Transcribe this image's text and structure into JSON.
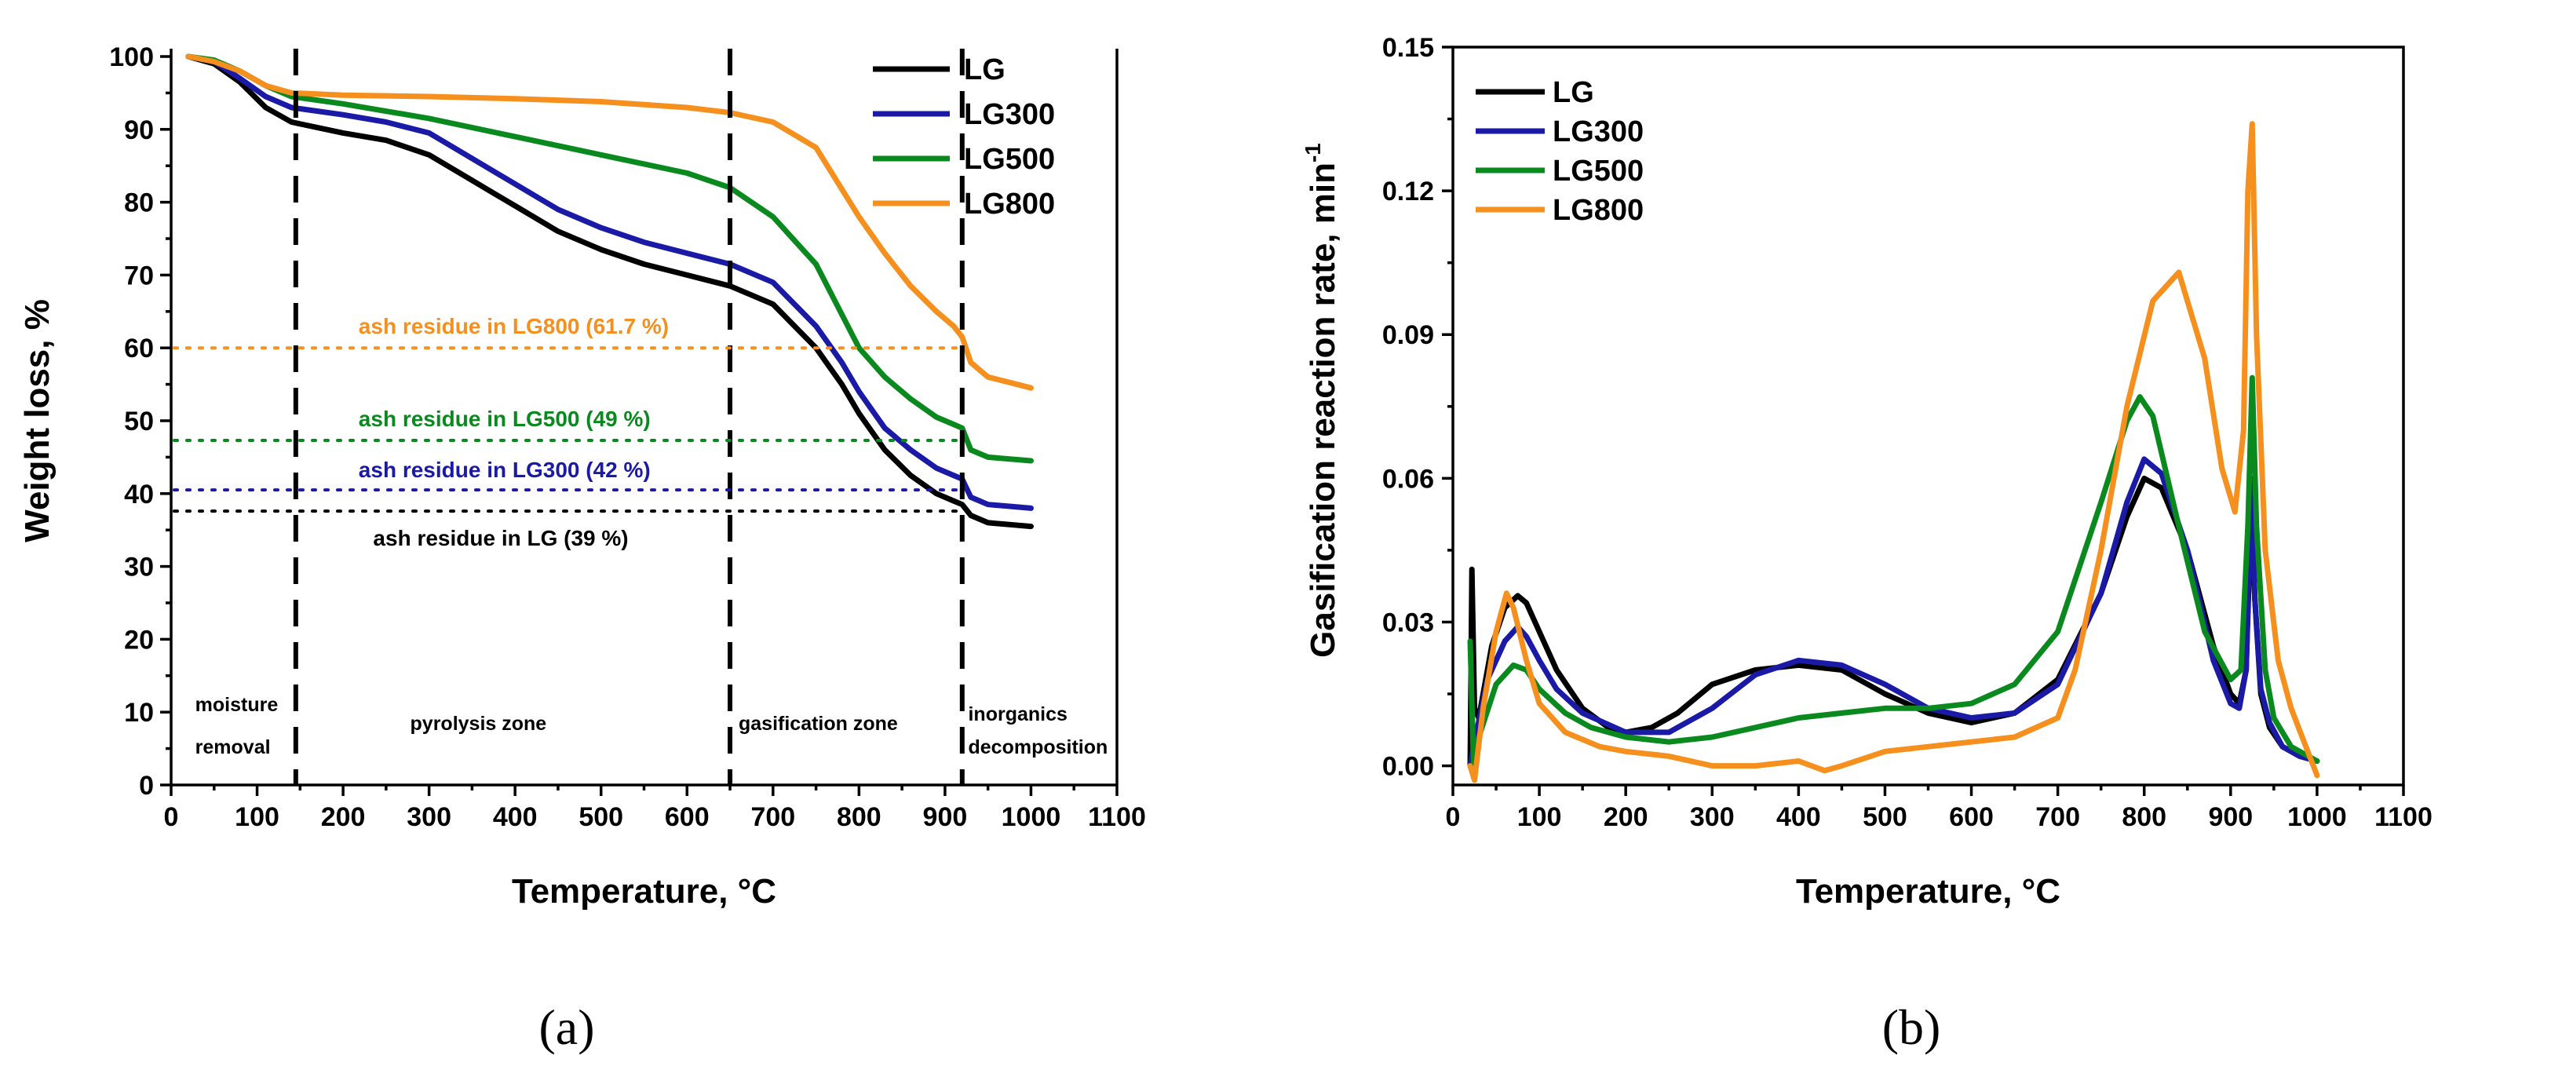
{
  "chart_data": [
    {
      "panel": "(a)",
      "type": "line",
      "title": "",
      "xlabel": "Temperature, °C",
      "ylabel": "Weight loss, %",
      "xlim": [
        0,
        1100
      ],
      "ylim": [
        0,
        100
      ],
      "xticks": [
        0,
        100,
        200,
        300,
        400,
        500,
        600,
        700,
        800,
        900,
        1000,
        1100
      ],
      "yticks": [
        0,
        10,
        20,
        30,
        40,
        50,
        60,
        70,
        80,
        90,
        100
      ],
      "legend_position": "top-right",
      "series": [
        {
          "name": "LG",
          "color": "#000000",
          "x": [
            20,
            50,
            80,
            110,
            140,
            200,
            250,
            300,
            350,
            400,
            450,
            500,
            550,
            600,
            650,
            700,
            750,
            780,
            800,
            830,
            860,
            890,
            910,
            920,
            930,
            950,
            1000
          ],
          "y": [
            100,
            99,
            96.5,
            93,
            91,
            89.5,
            88.5,
            86.5,
            83,
            79.5,
            76,
            73.5,
            71.5,
            70,
            68.5,
            66,
            60,
            55,
            51,
            46,
            42.5,
            40,
            39,
            38.5,
            37,
            36,
            35.5
          ]
        },
        {
          "name": "LG300",
          "color": "#1a1aa6",
          "x": [
            20,
            50,
            80,
            110,
            140,
            200,
            250,
            300,
            350,
            400,
            450,
            500,
            550,
            600,
            650,
            700,
            750,
            780,
            800,
            830,
            860,
            890,
            910,
            920,
            930,
            950,
            1000
          ],
          "y": [
            100,
            99.3,
            97,
            94.5,
            93,
            92,
            91,
            89.5,
            86,
            82.5,
            79,
            76.5,
            74.5,
            73,
            71.5,
            69,
            63,
            58,
            54,
            49,
            46,
            43.5,
            42.5,
            42,
            39.5,
            38.5,
            38
          ]
        },
        {
          "name": "LG500",
          "color": "#0a8a1e",
          "x": [
            20,
            50,
            80,
            110,
            140,
            200,
            300,
            400,
            500,
            600,
            650,
            700,
            750,
            800,
            830,
            860,
            890,
            910,
            920,
            930,
            950,
            1000
          ],
          "y": [
            100,
            99.5,
            98,
            96,
            94.5,
            93.5,
            91.5,
            89,
            86.5,
            84,
            82,
            78,
            71.5,
            60,
            56,
            53,
            50.5,
            49.5,
            49,
            46,
            45,
            44.5
          ]
        },
        {
          "name": "LG800",
          "color": "#f5901e",
          "x": [
            20,
            50,
            80,
            110,
            140,
            200,
            300,
            400,
            500,
            600,
            650,
            700,
            750,
            800,
            830,
            860,
            890,
            910,
            920,
            930,
            950,
            1000
          ],
          "y": [
            100,
            99.3,
            98,
            96,
            95,
            94.7,
            94.5,
            94.2,
            93.8,
            93,
            92.3,
            91,
            87.5,
            78,
            73,
            68.5,
            65,
            63,
            61.5,
            58,
            56,
            54.5
          ]
        }
      ],
      "reference_lines": [
        {
          "label": "ash residue in LG800 (61.7 %)",
          "y": 60,
          "color": "#f5901e"
        },
        {
          "label": "ash residue in LG500 (49 %)",
          "y": 47.3,
          "color": "#0a8a1e"
        },
        {
          "label": "ash residue in LG300 (42 %)",
          "y": 40.5,
          "color": "#1a1aa6"
        },
        {
          "label": "ash residue in LG (39 %)",
          "y": 37.6,
          "color": "#000000"
        }
      ],
      "zone_lines": [
        145,
        650,
        920
      ],
      "zones": [
        {
          "line1": "moisture",
          "line2": "removal"
        },
        {
          "line1": "pyrolysis zone",
          "line2": ""
        },
        {
          "line1": "gasification zone",
          "line2": ""
        },
        {
          "line1": "inorganics",
          "line2": "decomposition"
        }
      ]
    },
    {
      "panel": "(b)",
      "type": "line",
      "title": "",
      "xlabel": "Temperature, °C",
      "ylabel": "Gasification reaction rate, min",
      "ylabel_sup": "-1",
      "xlim": [
        0,
        1100
      ],
      "ylim": [
        -0.004,
        0.15
      ],
      "xticks": [
        0,
        100,
        200,
        300,
        400,
        500,
        600,
        700,
        800,
        900,
        1000,
        1100
      ],
      "yticks": [
        "0.00",
        "0.03",
        "0.06",
        "0.09",
        "0.12",
        "0.15"
      ],
      "legend_position": "top-left",
      "series": [
        {
          "name": "LG",
          "color": "#000000",
          "x": [
            20,
            22,
            25,
            30,
            45,
            60,
            75,
            85,
            100,
            120,
            150,
            180,
            200,
            230,
            260,
            300,
            350,
            400,
            450,
            500,
            550,
            600,
            650,
            700,
            750,
            780,
            800,
            820,
            850,
            880,
            900,
            910,
            918,
            924,
            928,
            935,
            945,
            960,
            980,
            1000
          ],
          "y": [
            0,
            0.041,
            0.012,
            0.01,
            0.025,
            0.033,
            0.0355,
            0.034,
            0.028,
            0.02,
            0.012,
            0.008,
            0.007,
            0.008,
            0.011,
            0.017,
            0.02,
            0.021,
            0.02,
            0.015,
            0.011,
            0.009,
            0.011,
            0.018,
            0.036,
            0.052,
            0.06,
            0.058,
            0.045,
            0.025,
            0.015,
            0.013,
            0.02,
            0.055,
            0.035,
            0.015,
            0.008,
            0.004,
            0.002,
            0.001
          ]
        },
        {
          "name": "LG300",
          "color": "#1a1aa6",
          "x": [
            20,
            25,
            40,
            60,
            75,
            85,
            100,
            120,
            150,
            200,
            250,
            300,
            350,
            400,
            450,
            500,
            550,
            600,
            650,
            700,
            750,
            780,
            800,
            820,
            850,
            880,
            900,
            910,
            918,
            924,
            928,
            935,
            945,
            960,
            980,
            1000
          ],
          "y": [
            0,
            0.005,
            0.018,
            0.026,
            0.029,
            0.027,
            0.022,
            0.016,
            0.011,
            0.007,
            0.007,
            0.012,
            0.019,
            0.022,
            0.021,
            0.017,
            0.012,
            0.01,
            0.011,
            0.017,
            0.036,
            0.055,
            0.064,
            0.061,
            0.045,
            0.022,
            0.013,
            0.012,
            0.02,
            0.06,
            0.035,
            0.016,
            0.009,
            0.004,
            0.002,
            0.001
          ]
        },
        {
          "name": "LG500",
          "color": "#0a8a1e",
          "x": [
            20,
            24,
            30,
            50,
            70,
            85,
            100,
            130,
            160,
            200,
            250,
            300,
            350,
            400,
            450,
            500,
            550,
            600,
            650,
            700,
            750,
            780,
            795,
            810,
            840,
            870,
            900,
            912,
            920,
            925,
            930,
            940,
            950,
            970,
            1000
          ],
          "y": [
            0.026,
            0,
            0.006,
            0.017,
            0.021,
            0.02,
            0.016,
            0.011,
            0.008,
            0.006,
            0.005,
            0.006,
            0.008,
            0.01,
            0.011,
            0.012,
            0.012,
            0.013,
            0.017,
            0.028,
            0.055,
            0.072,
            0.077,
            0.073,
            0.05,
            0.028,
            0.018,
            0.02,
            0.05,
            0.081,
            0.05,
            0.02,
            0.01,
            0.004,
            0.001
          ]
        },
        {
          "name": "LG800",
          "color": "#f5901e",
          "x": [
            20,
            25,
            35,
            50,
            62,
            70,
            85,
            100,
            130,
            170,
            200,
            250,
            300,
            350,
            400,
            430,
            450,
            500,
            550,
            600,
            650,
            700,
            720,
            750,
            780,
            810,
            840,
            870,
            890,
            905,
            915,
            920,
            925,
            930,
            940,
            955,
            970,
            985,
            1000
          ],
          "y": [
            0,
            -0.003,
            0.012,
            0.028,
            0.036,
            0.033,
            0.022,
            0.013,
            0.007,
            0.004,
            0.003,
            0.002,
            0.0,
            0.0,
            0.001,
            -0.001,
            0.0,
            0.003,
            0.004,
            0.005,
            0.006,
            0.01,
            0.02,
            0.045,
            0.075,
            0.097,
            0.103,
            0.085,
            0.062,
            0.053,
            0.07,
            0.12,
            0.134,
            0.09,
            0.045,
            0.022,
            0.012,
            0.005,
            -0.002
          ]
        }
      ]
    }
  ],
  "panel_labels": [
    "(a)",
    "(b)"
  ]
}
